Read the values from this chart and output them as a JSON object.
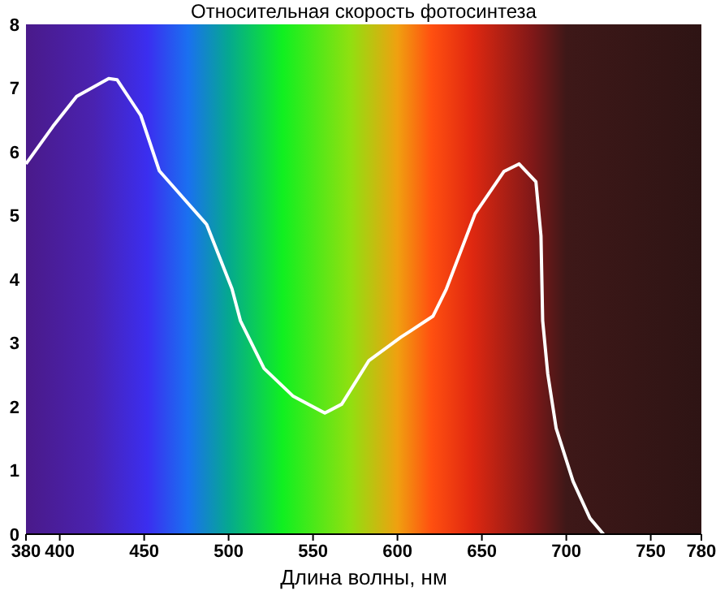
{
  "chart_data": {
    "type": "line",
    "title": "Относительная скорость фотосинтеза",
    "xlabel": "Длина волны, нм",
    "x": [
      380,
      396,
      410,
      429,
      434,
      448,
      459,
      473,
      487,
      502,
      507,
      521,
      538,
      557,
      567,
      583,
      602,
      621,
      629,
      646,
      663,
      672,
      682,
      685,
      686,
      689,
      694,
      704,
      714,
      722
    ],
    "series": [
      {
        "color": "#ffffff",
        "values": [
          5.81,
          6.4,
          6.87,
          7.15,
          7.13,
          6.57,
          5.7,
          5.28,
          4.86,
          3.85,
          3.35,
          2.6,
          2.17,
          1.9,
          2.04,
          2.72,
          3.09,
          3.42,
          3.85,
          5.03,
          5.69,
          5.81,
          5.53,
          4.68,
          3.35,
          2.52,
          1.66,
          0.83,
          0.25,
          0
        ]
      }
    ],
    "xlim": [
      380,
      780
    ],
    "xticks": [
      380,
      400,
      450,
      500,
      550,
      600,
      650,
      700,
      750,
      780
    ],
    "ylim": [
      0,
      8
    ],
    "yticks": [
      0,
      1,
      2,
      3,
      4,
      5,
      6,
      7,
      8
    ],
    "grid": false,
    "legend": false,
    "marker": "none",
    "line_style": "solid"
  }
}
